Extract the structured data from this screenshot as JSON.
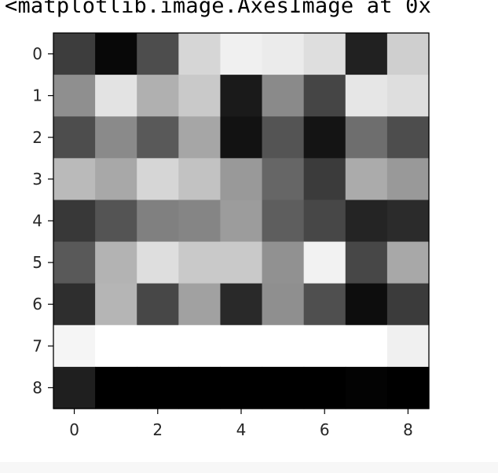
{
  "output": {
    "repr_text": "<matplotlib.image.AxesImage at 0x"
  },
  "chart_data": {
    "type": "heatmap",
    "colormap": "gray",
    "title": "",
    "xlabel": "",
    "ylabel": "",
    "x_ticks": [
      0,
      2,
      4,
      6,
      8
    ],
    "y_ticks": [
      0,
      1,
      2,
      3,
      4,
      5,
      6,
      7,
      8
    ],
    "xlim": [
      -0.5,
      8.5
    ],
    "ylim": [
      8.5,
      -0.5
    ],
    "grid": false,
    "values": [
      [
        0.24,
        0.03,
        0.3,
        0.84,
        0.94,
        0.92,
        0.87,
        0.13,
        0.81
      ],
      [
        0.56,
        0.89,
        0.69,
        0.79,
        0.1,
        0.54,
        0.27,
        0.9,
        0.87
      ],
      [
        0.3,
        0.54,
        0.35,
        0.65,
        0.07,
        0.33,
        0.08,
        0.43,
        0.3
      ],
      [
        0.73,
        0.66,
        0.84,
        0.76,
        0.6,
        0.4,
        0.23,
        0.67,
        0.6
      ],
      [
        0.22,
        0.33,
        0.5,
        0.52,
        0.61,
        0.37,
        0.28,
        0.14,
        0.17
      ],
      [
        0.35,
        0.7,
        0.87,
        0.79,
        0.79,
        0.57,
        0.95,
        0.28,
        0.66
      ],
      [
        0.18,
        0.71,
        0.28,
        0.63,
        0.16,
        0.56,
        0.31,
        0.05,
        0.23
      ],
      [
        0.96,
        1.0,
        1.0,
        1.0,
        1.0,
        1.0,
        1.0,
        1.0,
        0.94
      ],
      [
        0.12,
        0.0,
        0.0,
        0.0,
        0.0,
        0.0,
        0.0,
        0.01,
        0.0
      ]
    ]
  }
}
